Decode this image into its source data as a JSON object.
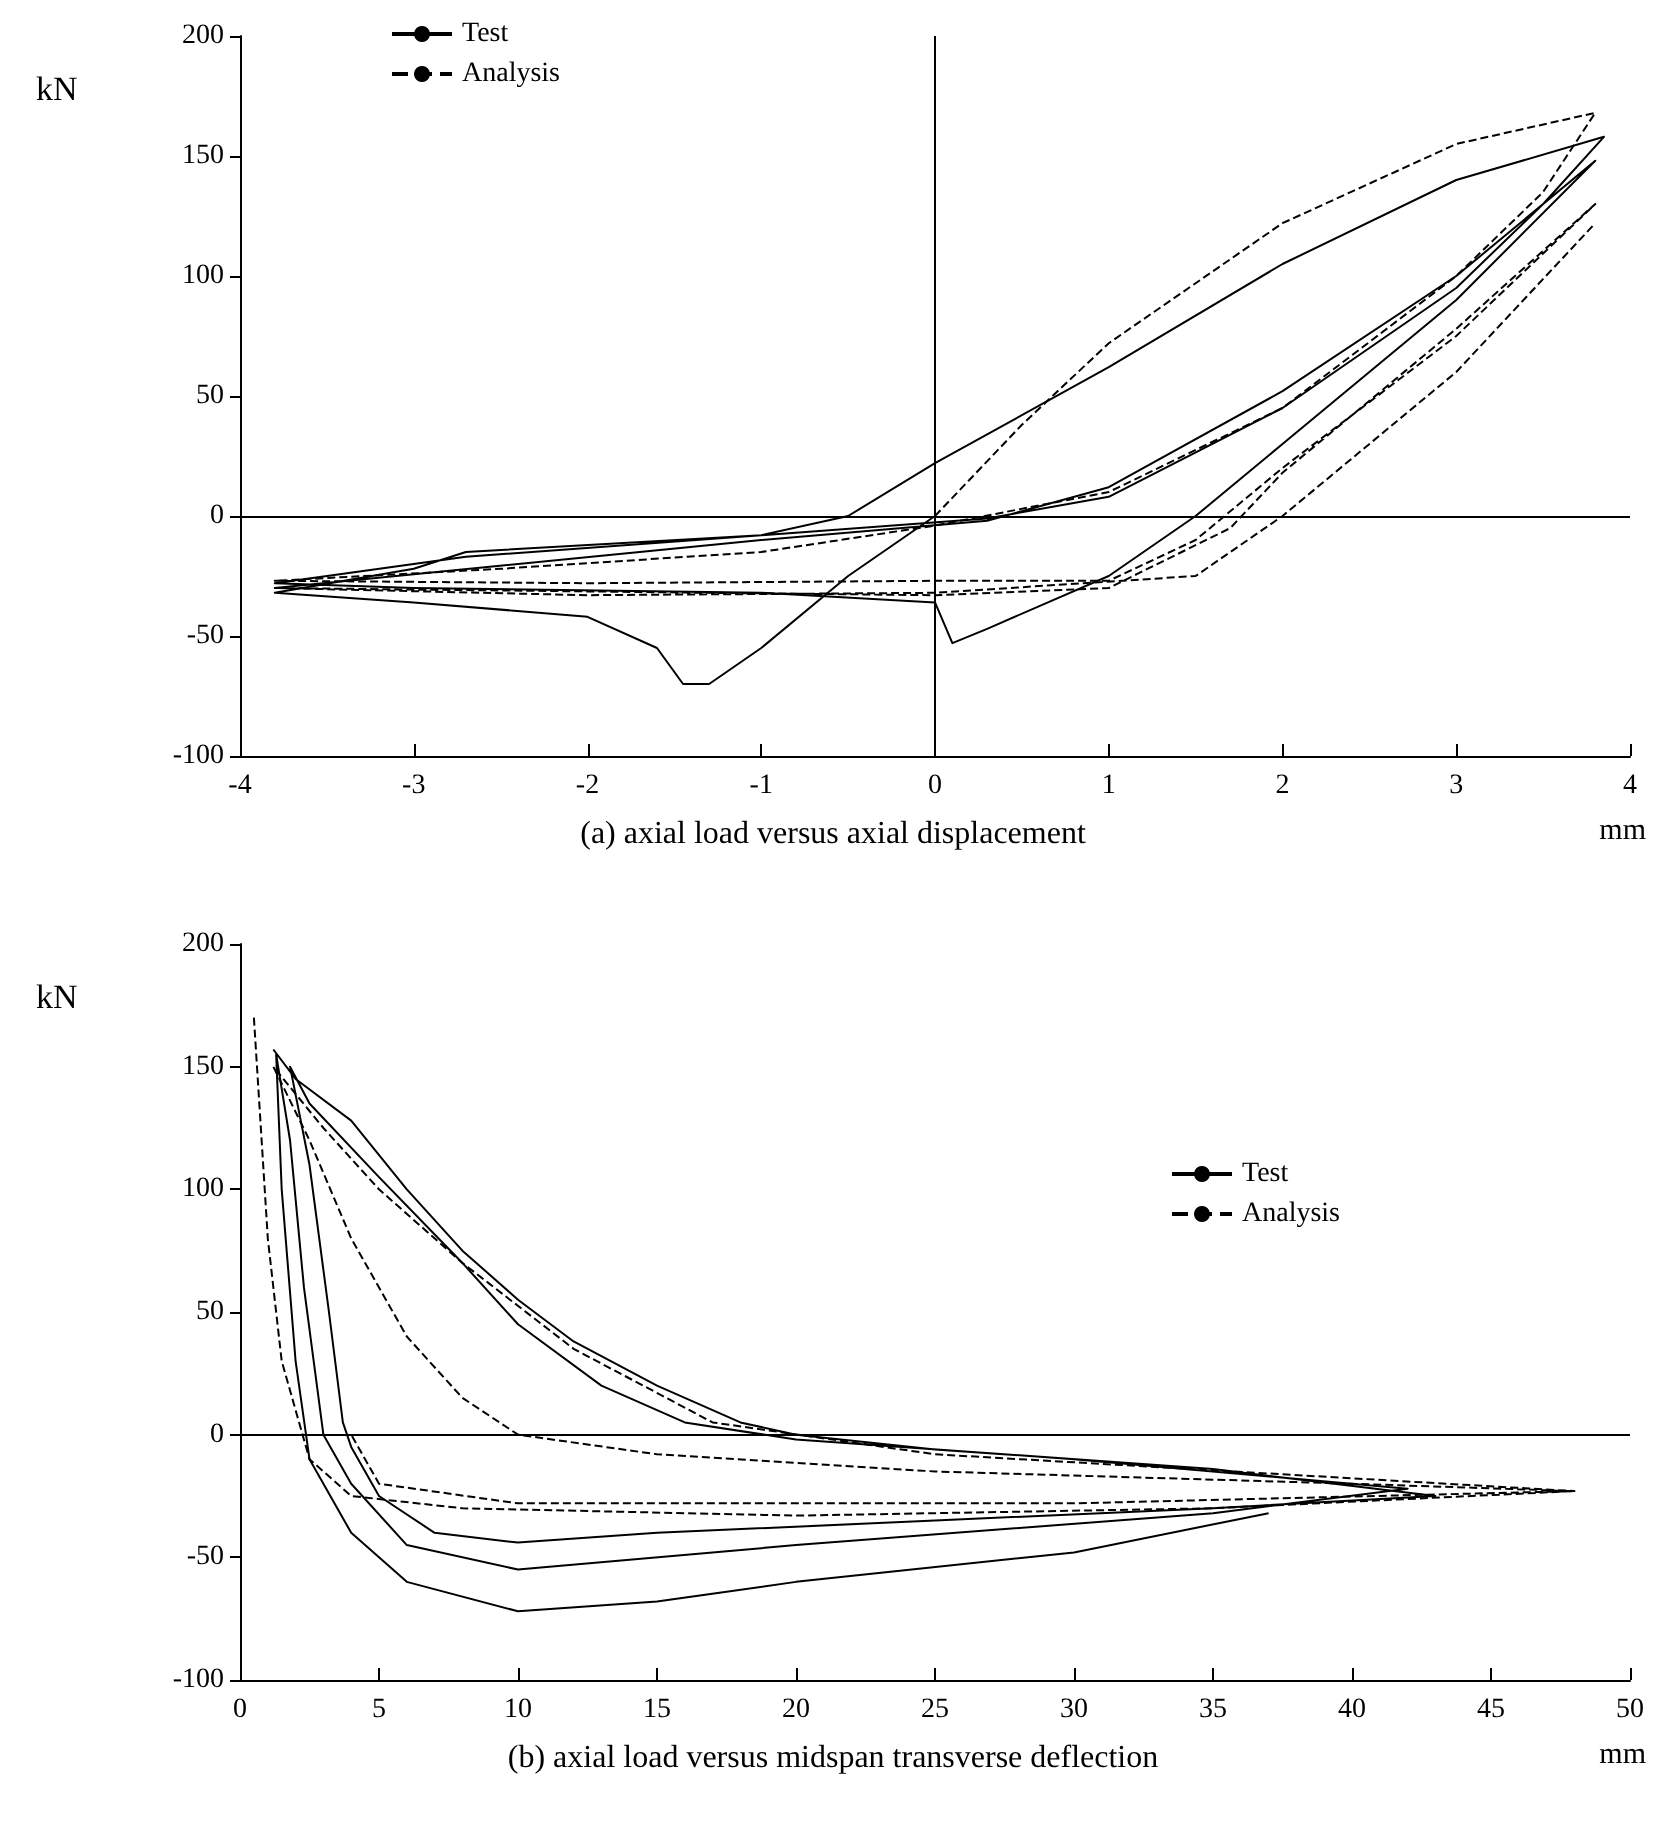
{
  "chart_data": [
    {
      "type": "line",
      "title": "(a) axial load versus axial displacement",
      "xlabel": "mm",
      "ylabel": "kN",
      "xlim": [
        -4,
        4
      ],
      "xticks": [
        -4,
        -3,
        -2,
        -1,
        0,
        1,
        2,
        3,
        4
      ],
      "ylim": [
        -100,
        200
      ],
      "yticks": [
        -100,
        -50,
        0,
        50,
        100,
        150,
        200
      ],
      "legend": "top left",
      "marker": "none",
      "ref_lines": [
        {
          "axis": "y",
          "value": 0
        },
        {
          "axis": "x",
          "value": 0
        }
      ],
      "series": [
        {
          "name": "Test",
          "color": "#000000",
          "line_style": "solid",
          "x": [
            0,
            -0.5,
            -1,
            -1.3,
            -1.45,
            -1.6,
            -2,
            -3,
            -3.8,
            -3,
            -2.7,
            -1,
            -0.5,
            0,
            1,
            2,
            3,
            3.85,
            3.5,
            3,
            2,
            1,
            0.3,
            -1,
            -2.7,
            -3.8,
            -3,
            -1,
            0,
            0.1,
            0.3,
            1,
            1.5,
            2,
            3,
            3.8,
            3,
            2,
            1,
            0.3,
            -1,
            -3.8
          ],
          "values": [
            0,
            -25,
            -55,
            -70,
            -70,
            -55,
            -42,
            -36,
            -32,
            -22,
            -15,
            -8,
            0,
            22,
            62,
            105,
            140,
            158,
            130,
            95,
            45,
            8,
            -1,
            -8,
            -17,
            -28,
            -30,
            -32,
            -36,
            -53,
            -47,
            -25,
            0,
            30,
            90,
            148,
            100,
            52,
            12,
            -2,
            -10,
            -30
          ]
        },
        {
          "name": "Analysis",
          "color": "#000000",
          "line_style": "dashed",
          "x": [
            0,
            0.5,
            1,
            2,
            3,
            3.8,
            3.5,
            3,
            2,
            1,
            0,
            -1,
            -2.5,
            -3.8,
            -2,
            0,
            1,
            1.5,
            2,
            3,
            3.8,
            3,
            2,
            1.7,
            1,
            0,
            -3.8,
            -2,
            0,
            1.5,
            2,
            3,
            3.8
          ],
          "values": [
            0,
            38,
            72,
            122,
            155,
            168,
            135,
            100,
            45,
            10,
            -4,
            -15,
            -22,
            -27,
            -28,
            -27,
            -27,
            -10,
            20,
            75,
            130,
            78,
            18,
            -5,
            -30,
            -33,
            -30,
            -33,
            -32,
            -25,
            0,
            60,
            122
          ]
        }
      ]
    },
    {
      "type": "line",
      "title": "(b) axial load versus midspan transverse deflection",
      "xlabel": "mm",
      "ylabel": "kN",
      "xlim": [
        0,
        50
      ],
      "xticks": [
        0,
        5,
        10,
        15,
        20,
        25,
        30,
        35,
        40,
        45,
        50
      ],
      "ylim": [
        -100,
        200
      ],
      "yticks": [
        -100,
        -50,
        0,
        50,
        100,
        150,
        200
      ],
      "legend": "right",
      "marker": "none",
      "ref_lines": [
        {
          "axis": "y",
          "value": 0
        }
      ],
      "series": [
        {
          "name": "Test",
          "color": "#000000",
          "line_style": "solid",
          "x": [
            1.2,
            2,
            4,
            6,
            8,
            10,
            12,
            15,
            18,
            20,
            25,
            35,
            43,
            35,
            25,
            15,
            10,
            7,
            5,
            4,
            3.7,
            3.2,
            2.5,
            1.8,
            2.5,
            5,
            8,
            10,
            13,
            16,
            20,
            30,
            42,
            35,
            20,
            10,
            6,
            4,
            3,
            2.3,
            1.8,
            1.3,
            1.5,
            2,
            2.5,
            4,
            6,
            10,
            15,
            20,
            30,
            37
          ],
          "values": [
            157,
            145,
            128,
            100,
            75,
            55,
            38,
            20,
            5,
            0,
            -6,
            -14,
            -25,
            -30,
            -35,
            -40,
            -44,
            -40,
            -25,
            -5,
            5,
            50,
            110,
            150,
            135,
            105,
            70,
            45,
            20,
            5,
            -2,
            -10,
            -22,
            -32,
            -45,
            -55,
            -45,
            -20,
            0,
            60,
            120,
            155,
            100,
            30,
            -10,
            -40,
            -60,
            -72,
            -68,
            -60,
            -48,
            -32
          ]
        },
        {
          "name": "Analysis",
          "color": "#000000",
          "line_style": "dashed",
          "x": [
            0.5,
            1,
            1.5,
            2.5,
            4,
            8,
            20,
            35,
            48,
            40,
            25,
            15,
            10,
            8,
            6,
            4,
            2.5,
            1.2,
            3,
            5,
            8,
            12,
            17,
            25,
            48,
            30,
            10,
            5,
            4
          ],
          "values": [
            170,
            80,
            30,
            -10,
            -25,
            -30,
            -33,
            -30,
            -23,
            -20,
            -15,
            -8,
            0,
            15,
            40,
            80,
            120,
            150,
            125,
            100,
            70,
            35,
            5,
            -8,
            -23,
            -28,
            -28,
            -20,
            0
          ]
        }
      ]
    }
  ]
}
